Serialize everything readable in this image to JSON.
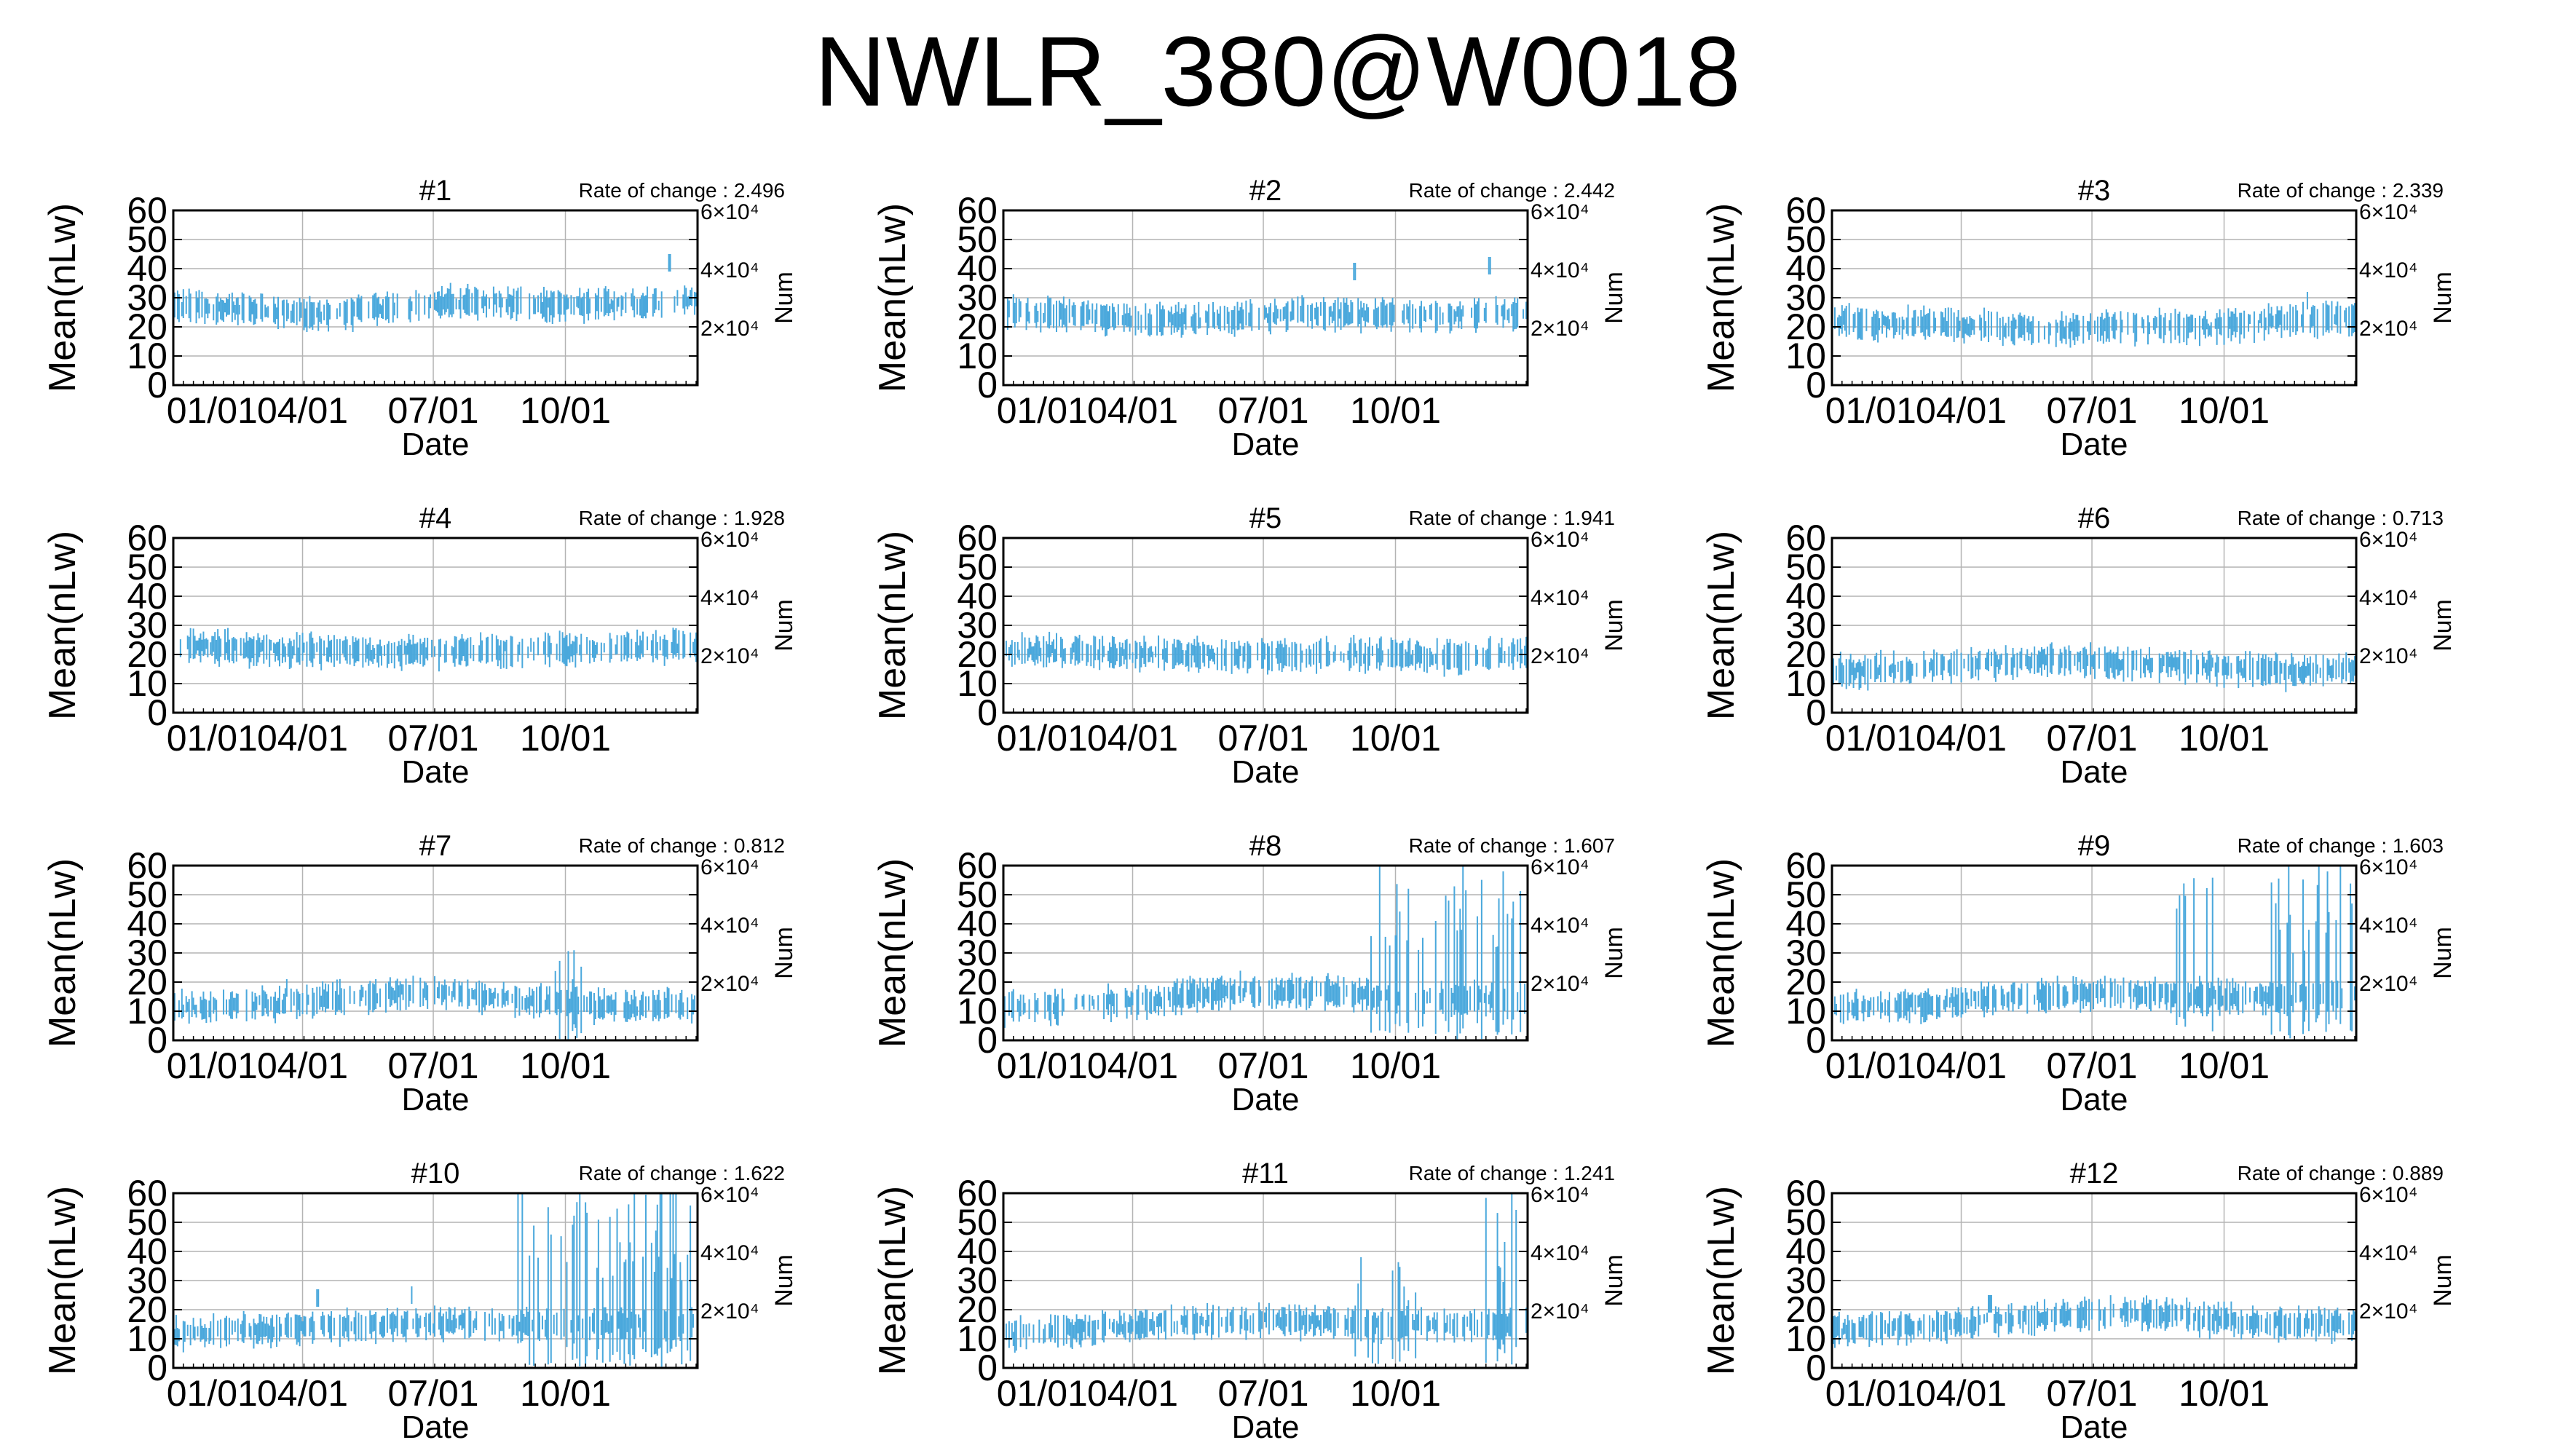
{
  "title": "NWLR_380@W0018",
  "colors": {
    "data": "#4aa8dc",
    "grid": "#b4b4b4",
    "axis": "#000000"
  },
  "chart_data": {
    "type": "line",
    "description": "12 panels of daily error bars (vertical bars) of Mean(nLw) over one year",
    "xlabel": "Date",
    "ylabel_left": "Mean(nLw)",
    "ylabel_right": "Num",
    "ylim": [
      0,
      60
    ],
    "yticks": [
      "0",
      "10",
      "20",
      "30",
      "40",
      "50",
      "60"
    ],
    "xticks": [
      "01/01",
      "04/01",
      "07/01",
      "10/01"
    ],
    "right_ticks": [
      "2×10⁴",
      "4×10⁴",
      "6×10⁴"
    ],
    "rate_label": "Rate of change :",
    "panels": [
      {
        "name": "#1",
        "rate": "2.496",
        "base": [
          27,
          26,
          24,
          27,
          29,
          27,
          28,
          29
        ],
        "spread": 4,
        "spikes": [
          [
            345,
            45
          ]
        ],
        "wild": []
      },
      {
        "name": "#2",
        "rate": "2.442",
        "base": [
          25,
          24,
          22,
          23,
          25,
          24,
          24,
          25
        ],
        "spread": 4,
        "spikes": [
          [
            245,
            42
          ],
          [
            338,
            44
          ]
        ],
        "wild": []
      },
      {
        "name": "#3",
        "rate": "2.339",
        "base": [
          22,
          21,
          20,
          19,
          20,
          20,
          22,
          23
        ],
        "spread": 4,
        "spikes": [
          [
            330,
            32
          ]
        ],
        "wild": []
      },
      {
        "name": "#4",
        "rate": "1.928",
        "base": [
          23,
          22,
          21,
          21,
          21,
          22,
          22,
          23
        ],
        "spread": 4,
        "spikes": [],
        "wild": []
      },
      {
        "name": "#5",
        "rate": "1.941",
        "base": [
          21,
          21,
          20,
          20,
          20,
          20,
          19,
          21
        ],
        "spread": 4,
        "spikes": [],
        "wild": []
      },
      {
        "name": "#6",
        "rate": "0.713",
        "base": [
          14,
          15,
          17,
          18,
          17,
          16,
          14,
          15
        ],
        "spread": 4,
        "spikes": [],
        "wild": []
      },
      {
        "name": "#7",
        "rate": "0.812",
        "base": [
          11,
          12,
          14,
          16,
          16,
          13,
          11,
          12
        ],
        "spread": 4,
        "spikes": [
          [
            80,
            21
          ]
        ],
        "wild": [
          [
            265,
            290,
            30
          ]
        ]
      },
      {
        "name": "#8",
        "rate": "1.607",
        "base": [
          11,
          12,
          14,
          17,
          17,
          15,
          14,
          14
        ],
        "spread": 4,
        "spikes": [],
        "wild": [
          [
            255,
            365,
            60
          ]
        ]
      },
      {
        "name": "#9",
        "rate": "1.603",
        "base": [
          11,
          12,
          14,
          16,
          16,
          15,
          15,
          15
        ],
        "spread": 4,
        "spikes": [],
        "wild": [
          [
            240,
            265,
            60
          ],
          [
            305,
            365,
            60
          ]
        ]
      },
      {
        "name": "#10",
        "rate": "1.622",
        "base": [
          12,
          13,
          14,
          15,
          15,
          15,
          15,
          15
        ],
        "spread": 4,
        "spikes": [
          [
            100,
            27
          ],
          [
            165,
            28
          ]
        ],
        "wild": [
          [
            240,
            365,
            60
          ]
        ]
      },
      {
        "name": "#11",
        "rate": "1.241",
        "base": [
          11,
          13,
          15,
          16,
          16,
          15,
          15,
          15
        ],
        "spread": 4,
        "spikes": [],
        "wild": [
          [
            245,
            290,
            35
          ],
          [
            330,
            365,
            55
          ]
        ]
      },
      {
        "name": "#12",
        "rate": "0.889",
        "base": [
          13,
          14,
          16,
          18,
          19,
          17,
          15,
          15
        ],
        "spread": 4,
        "spikes": [
          [
            110,
            25
          ]
        ],
        "wild": []
      }
    ]
  }
}
